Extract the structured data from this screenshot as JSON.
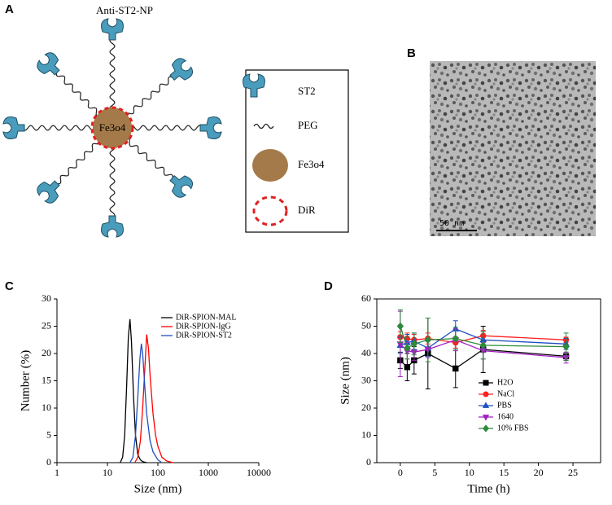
{
  "panels": [
    {
      "label": "A",
      "title": "Anti-ST2-NP",
      "core_label": "Fe3o4",
      "legend": [
        "ST2",
        "PEG",
        "Fe3o4",
        "DiR"
      ]
    },
    {
      "label": "B",
      "scale_bar": "50 nm"
    },
    {
      "label": "C"
    },
    {
      "label": "D"
    }
  ],
  "chart_data": [
    {
      "type": "line",
      "xlabel": "Size (nm)",
      "ylabel": "Number (%)",
      "xscale": "log",
      "xlim": [
        1,
        10000
      ],
      "xticks": [
        1,
        10,
        100,
        1000,
        10000
      ],
      "ylim": [
        0,
        30
      ],
      "yticks": [
        0,
        5,
        10,
        15,
        20,
        25,
        30
      ],
      "series": [
        {
          "name": "DiR-SPION-MAL",
          "color": "#000000",
          "x": [
            18,
            20,
            22,
            24,
            26,
            28,
            30,
            33,
            36,
            40,
            45,
            50,
            60
          ],
          "values": [
            0,
            1,
            5,
            14,
            23,
            26.3,
            22,
            12,
            5,
            1.5,
            0.5,
            0.2,
            0
          ]
        },
        {
          "name": "DiR-SPION-IgG",
          "color": "#ff0000",
          "x": [
            35,
            40,
            45,
            50,
            55,
            60,
            65,
            70,
            80,
            90,
            100,
            120,
            150,
            200
          ],
          "values": [
            0,
            1,
            4,
            10,
            17,
            23.5,
            21,
            16,
            9,
            5,
            3,
            1,
            0.3,
            0
          ]
        },
        {
          "name": "DiR-SPION-ST2",
          "color": "#1f4fbf",
          "x": [
            28,
            32,
            36,
            40,
            44,
            47,
            50,
            55,
            60,
            70,
            80,
            100,
            120
          ],
          "values": [
            0,
            1,
            5,
            12,
            19,
            21.8,
            20,
            14,
            9,
            4,
            2,
            0.5,
            0
          ]
        }
      ]
    },
    {
      "type": "line",
      "xlabel": "Time (h)",
      "ylabel": "Size (nm)",
      "x": [
        0,
        1,
        2,
        4,
        8,
        12,
        24
      ],
      "xlim": [
        -3.4,
        29
      ],
      "xticks": [
        0,
        5,
        10,
        15,
        20,
        25
      ],
      "ylim": [
        0,
        60
      ],
      "yticks": [
        0,
        10,
        20,
        30,
        40,
        50,
        60
      ],
      "series": [
        {
          "name": "H2O",
          "color": "#000000",
          "marker": "square",
          "values": [
            37.5,
            35,
            37.5,
            40,
            34.5,
            41.5,
            39
          ],
          "errors": [
            3,
            5,
            5,
            13,
            7,
            8.5,
            1.5
          ]
        },
        {
          "name": "NaCl",
          "color": "#ff2020",
          "marker": "circle",
          "values": [
            46,
            45.5,
            45,
            45.5,
            44,
            46.5,
            45
          ],
          "errors": [
            2,
            2,
            2,
            2,
            2,
            2,
            1
          ]
        },
        {
          "name": "PBS",
          "color": "#1f4fbf",
          "marker": "triangle",
          "values": [
            43,
            44,
            44.5,
            42,
            49,
            45,
            43.5
          ],
          "errors": [
            3,
            3,
            3,
            3,
            3,
            3,
            2
          ]
        },
        {
          "name": "1640",
          "color": "#a020c0",
          "marker": "triangle-down",
          "values": [
            43.5,
            41,
            40.5,
            41.5,
            45,
            41,
            38.5
          ],
          "errors": [
            12,
            3,
            3,
            3,
            4,
            3,
            2
          ]
        },
        {
          "name": "10% FBS",
          "color": "#2e8b3a",
          "marker": "diamond",
          "values": [
            50,
            42,
            43.5,
            45,
            45.5,
            43,
            42.5
          ],
          "errors": [
            6,
            4,
            4,
            8,
            4,
            5,
            5
          ]
        }
      ]
    }
  ]
}
